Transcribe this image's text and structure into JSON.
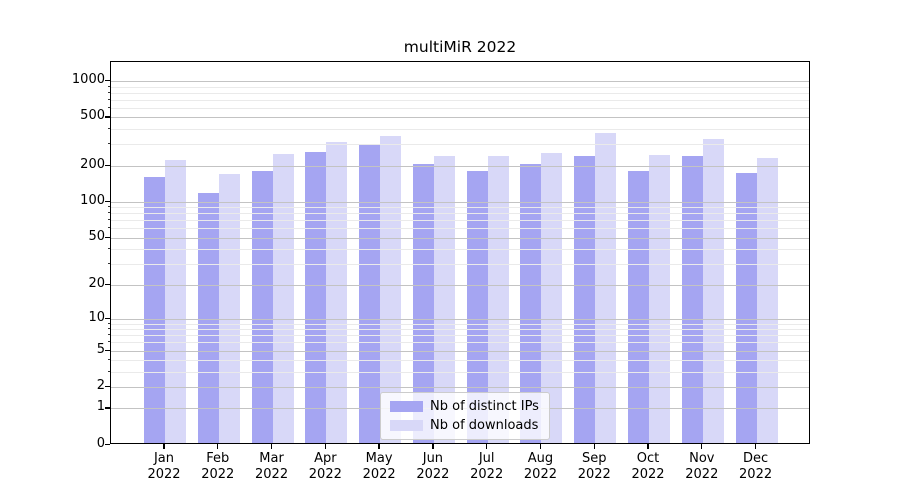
{
  "title": "multiMiR 2022",
  "legend": {
    "items": [
      {
        "label": "Nb of distinct IPs",
        "color": "#a5a5f2"
      },
      {
        "label": "Nb of downloads",
        "color": "#d8d8f8"
      }
    ]
  },
  "chart_data": {
    "type": "bar",
    "title": "multiMiR 2022",
    "categories": [
      "Jan 2022",
      "Feb 2022",
      "Mar 2022",
      "Apr 2022",
      "May 2022",
      "Jun 2022",
      "Jul 2022",
      "Aug 2022",
      "Sep 2022",
      "Oct 2022",
      "Nov 2022",
      "Dec 2022"
    ],
    "series": [
      {
        "name": "Nb of distinct IPs",
        "color": "#a5a5f2",
        "values": [
          155,
          115,
          175,
          250,
          285,
          199,
          175,
          198,
          230,
          175,
          230,
          167
        ]
      },
      {
        "name": "Nb of downloads",
        "color": "#d8d8f8",
        "values": [
          215,
          163,
          240,
          300,
          338,
          233,
          230,
          245,
          357,
          236,
          320,
          223
        ]
      }
    ],
    "xlabel": "",
    "ylabel": "",
    "yscale": "log1p",
    "yticks": [
      0,
      1,
      2,
      5,
      10,
      20,
      50,
      100,
      200,
      500,
      1000
    ],
    "minor_yticks": [
      3,
      4,
      6,
      7,
      8,
      9,
      30,
      40,
      60,
      70,
      80,
      90,
      300,
      400,
      600,
      700,
      800,
      900
    ],
    "ylim": [
      0,
      1430
    ],
    "grid": true,
    "legend_position": "lower center"
  }
}
